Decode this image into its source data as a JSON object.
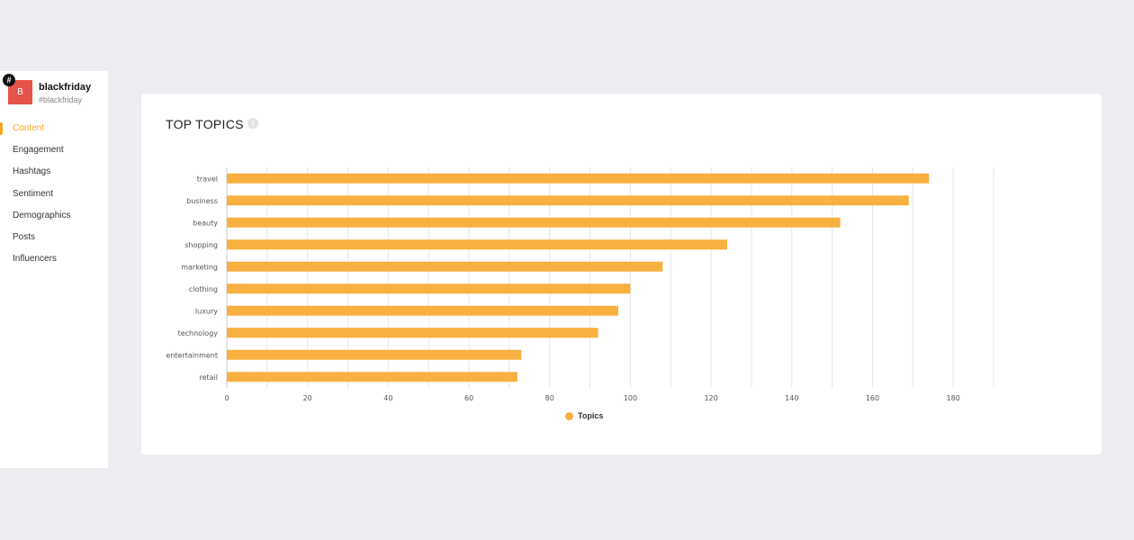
{
  "profile": {
    "avatar_letter": "B",
    "badge_icon": "#",
    "name": "blackfriday",
    "tag": "#blackfriday"
  },
  "nav": {
    "items": [
      {
        "label": "Content",
        "active": true
      },
      {
        "label": "Engagement",
        "active": false
      },
      {
        "label": "Hashtags",
        "active": false
      },
      {
        "label": "Sentiment",
        "active": false
      },
      {
        "label": "Demographics",
        "active": false
      },
      {
        "label": "Posts",
        "active": false
      },
      {
        "label": "Influencers",
        "active": false
      }
    ]
  },
  "card": {
    "title": "TOP TOPICS",
    "info_icon": "i"
  },
  "colors": {
    "accent": "#f5a623",
    "bar": "#f8b040",
    "grid": "#e6e6e6",
    "axis_text": "#555555"
  },
  "chart_data": {
    "type": "bar",
    "orientation": "horizontal",
    "categories": [
      "travel",
      "business",
      "beauty",
      "shopping",
      "marketing",
      "clothing",
      "luxury",
      "technology",
      "entertainment",
      "retail"
    ],
    "series": [
      {
        "name": "Topics",
        "values": [
          174,
          169,
          152,
          124,
          108,
          100,
          97,
          92,
          73,
          72
        ]
      }
    ],
    "xlim": [
      0,
      190
    ],
    "xticks": [
      0,
      20,
      40,
      60,
      80,
      100,
      120,
      140,
      160,
      180
    ],
    "grid": true,
    "legend_position": "bottom-center"
  }
}
